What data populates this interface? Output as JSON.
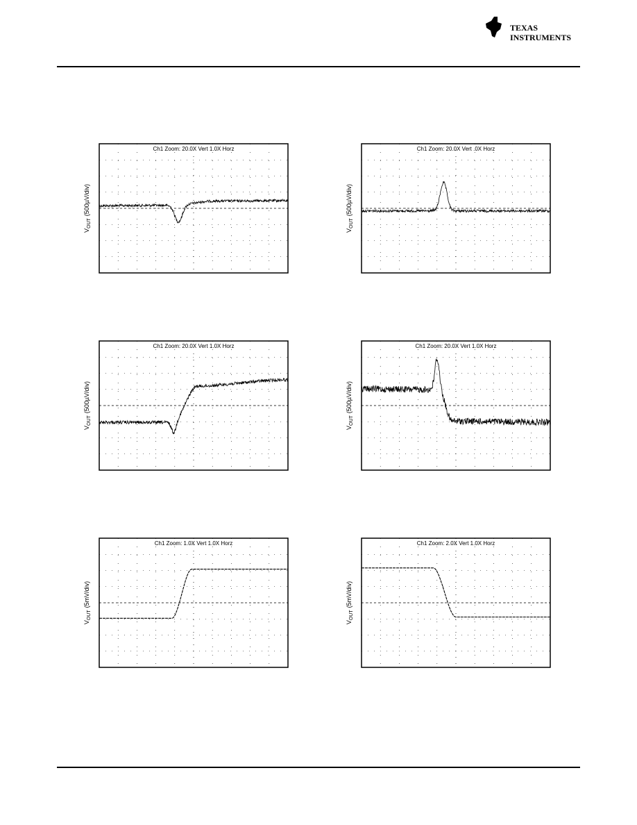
{
  "header": {
    "logo": {
      "line1": "TEXAS",
      "line2": "INSTRUMENTS"
    }
  },
  "plots": [
    {
      "y_label": {
        "symbol": "V",
        "subscript": "OUT",
        "unit": "(500µV/div)"
      },
      "scope_header": "Ch1 Zoom:   20.0X Vert    1.0X Horz"
    },
    {
      "y_label": {
        "symbol": "V",
        "subscript": "OUT",
        "unit": "(500µV/div)"
      },
      "scope_header": "Ch1 Zoom:   20.0X Vert     .0X Horz"
    },
    {
      "y_label": {
        "symbol": "V",
        "subscript": "OUT",
        "unit": "(500µV/div)"
      },
      "scope_header": "Ch1 Zoom:   20.0X Vert    1.0X Horz"
    },
    {
      "y_label": {
        "symbol": "V",
        "subscript": "OUT",
        "unit": "(500µV/div)"
      },
      "scope_header": "Ch1 Zoom:   20.0X Vert    1.0X Horz"
    },
    {
      "y_label": {
        "symbol": "V",
        "subscript": "OUT",
        "unit": "(5mV/div)"
      },
      "scope_header": "Ch1 Zoom:   1.0X Vert    1.0X Horz"
    },
    {
      "y_label": {
        "symbol": "V",
        "subscript": "OUT",
        "unit": "(5mV/div)"
      },
      "scope_header": "Ch1 Zoom:   2.0X Vert    1.0X Horz"
    }
  ]
}
